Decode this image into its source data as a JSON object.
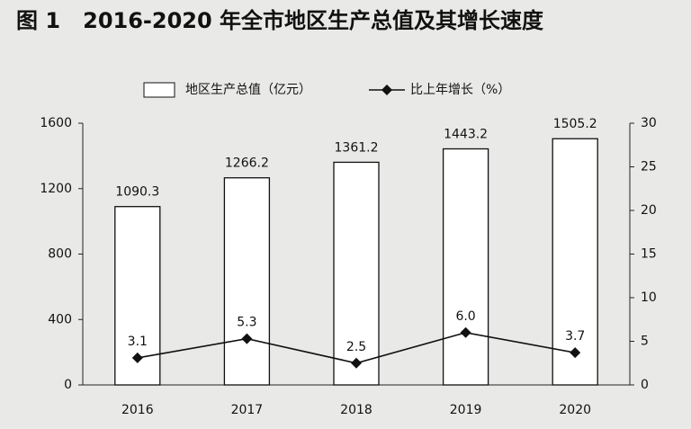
{
  "chart_data": {
    "type": "bar_line",
    "title": "图 1   2016-2020 年全市地区生产总值及其增长速度",
    "categories": [
      "2016",
      "2017",
      "2018",
      "2019",
      "2020"
    ],
    "series": [
      {
        "name": "地区生产总值（亿元）",
        "type": "bar",
        "color": "#ffffff",
        "values": [
          1090.3,
          1266.2,
          1361.2,
          1443.2,
          1505.2
        ]
      },
      {
        "name": "比上年增长（%）",
        "type": "line",
        "axis": "y2",
        "color": "#111111",
        "values": [
          3.1,
          5.3,
          2.5,
          6.0,
          3.7
        ],
        "value_labels": [
          "3.1",
          "5.3",
          "2.5",
          "6.0",
          "3.7"
        ]
      }
    ],
    "ylim": [
      0,
      1600
    ],
    "yticks": [
      0,
      400,
      800,
      1200,
      1600
    ],
    "y2lim": [
      0,
      30
    ],
    "y2ticks": [
      0,
      5,
      10,
      15,
      20,
      25,
      30
    ],
    "legend": "top",
    "grid": false
  }
}
